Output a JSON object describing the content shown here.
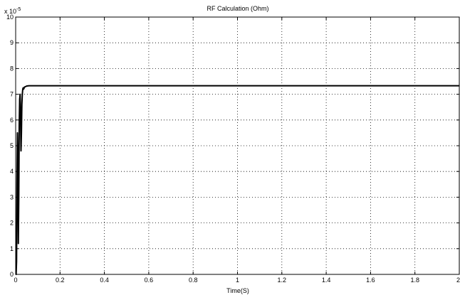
{
  "chart_data": {
    "type": "line",
    "title": "RF Calculation (Ohm)",
    "xlabel": "Time(S)",
    "ylabel": "",
    "y_multiplier_base": "x 10",
    "y_multiplier_exponent": "-5",
    "xlim": [
      0,
      2
    ],
    "ylim": [
      0,
      10
    ],
    "x_ticks": [
      "0",
      "0.2",
      "0.4",
      "0.6",
      "0.8",
      "1",
      "1.2",
      "1.4",
      "1.6",
      "1.8",
      "2"
    ],
    "y_ticks": [
      "0",
      "1",
      "2",
      "3",
      "4",
      "5",
      "6",
      "7",
      "8",
      "9",
      "10"
    ],
    "grid": true,
    "series": [
      {
        "line_color": "#000000",
        "x": [
          0,
          0.002,
          0.004,
          0.006,
          0.008,
          0.01,
          0.012,
          0.014,
          0.016,
          0.018,
          0.02,
          0.022,
          0.024,
          0.026,
          0.028,
          0.03,
          0.032,
          0.034,
          0.036,
          0.04,
          0.045,
          0.05,
          0.06,
          0.08,
          0.1,
          0.2,
          0.4,
          0.6,
          0.8,
          1.0,
          1.2,
          1.4,
          1.6,
          1.8,
          2.0
        ],
        "y": [
          0,
          0,
          0.5,
          3.5,
          5.5,
          4.5,
          1.2,
          3.0,
          5.8,
          6.8,
          7.0,
          6.2,
          4.8,
          5.5,
          6.6,
          7.0,
          7.2,
          7.25,
          7.2,
          7.28,
          7.3,
          7.32,
          7.33,
          7.33,
          7.33,
          7.33,
          7.33,
          7.33,
          7.33,
          7.33,
          7.33,
          7.33,
          7.33,
          7.33,
          7.33
        ]
      }
    ]
  }
}
